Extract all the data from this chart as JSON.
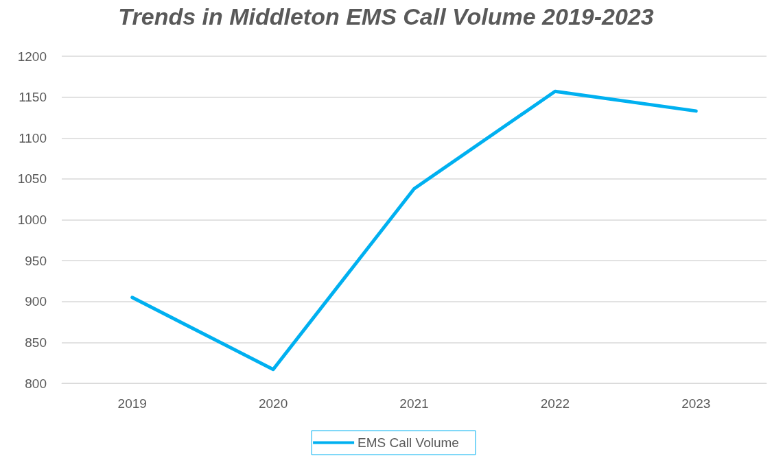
{
  "chart_data": {
    "type": "line",
    "title": "Trends in Middleton EMS Call Volume 2019-2023",
    "categories": [
      "2019",
      "2020",
      "2021",
      "2022",
      "2023"
    ],
    "series": [
      {
        "name": "EMS Call Volume",
        "color": "#00b0f0",
        "values": [
          905,
          817,
          1038,
          1157,
          1133
        ]
      }
    ],
    "ylim": [
      800,
      1200
    ],
    "yticks": [
      800,
      850,
      900,
      950,
      1000,
      1050,
      1100,
      1150,
      1200
    ],
    "grid": "y",
    "legend": "bottom",
    "marker": "none",
    "line_style": "solid"
  }
}
